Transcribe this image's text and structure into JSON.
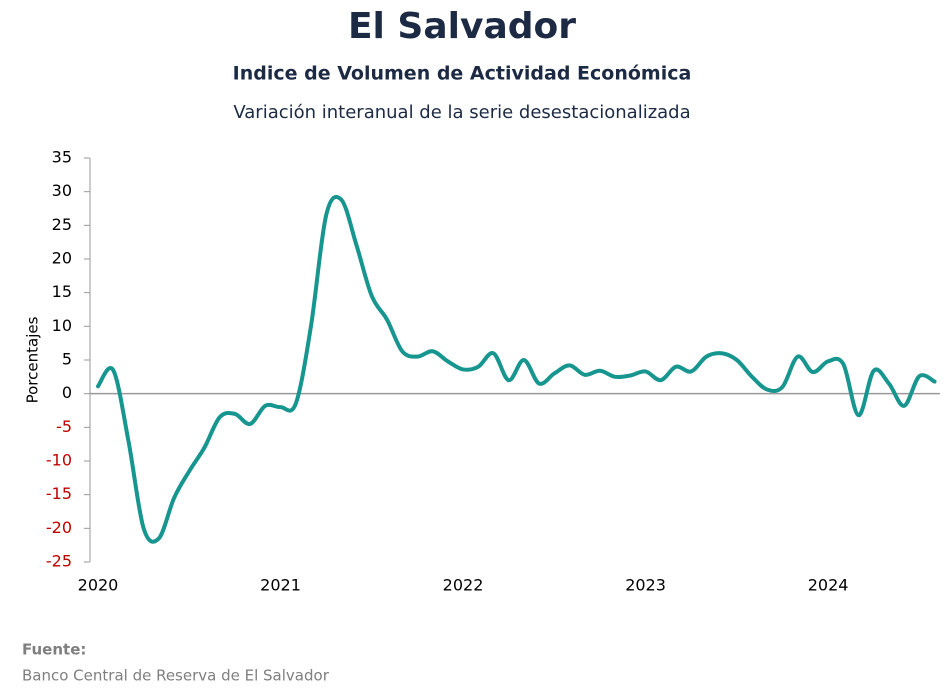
{
  "chart_data": {
    "type": "line",
    "title": "El Salvador",
    "subtitle": "Indice de Volumen de  Actividad Económica",
    "caption": "Variación interanual de la serie desestacionalizada",
    "y_label": "Porcentajes",
    "source_label": "Fuente:",
    "source": "Banco Central de Reserva de El Salvador",
    "categories": [
      "2020",
      null,
      null,
      null,
      null,
      null,
      null,
      null,
      null,
      null,
      null,
      null,
      "2021",
      null,
      null,
      null,
      null,
      null,
      null,
      null,
      null,
      null,
      null,
      null,
      "2022",
      null,
      null,
      null,
      null,
      null,
      null,
      null,
      null,
      null,
      null,
      null,
      "2023",
      null,
      null,
      null,
      null,
      null,
      null,
      null,
      null,
      null,
      null,
      null,
      "2024",
      null,
      null,
      null,
      null,
      null,
      null,
      null
    ],
    "series": [
      {
        "name": "Variación interanual",
        "color": "#17958f",
        "values": [
          1.1,
          3.5,
          -7,
          -20,
          -21.5,
          -15.5,
          -11.5,
          -8,
          -3.5,
          -3,
          -4.5,
          -1.8,
          -2,
          -1.5,
          10,
          26.5,
          28.8,
          22,
          14.5,
          11,
          6.3,
          5.5,
          6.3,
          4.8,
          3.6,
          4,
          6,
          2,
          5,
          1.5,
          3,
          4.2,
          2.8,
          3.4,
          2.5,
          2.7,
          3.3,
          2,
          4,
          3.3,
          5.5,
          6,
          5,
          2.5,
          0.6,
          1,
          5.5,
          3.2,
          4.8,
          4.4,
          -3.2,
          3.4,
          1.5,
          -1.8,
          2.6,
          1.8
        ]
      }
    ],
    "ylim": [
      -25,
      35
    ],
    "yticks": [
      -25,
      -20,
      -15,
      -10,
      -5,
      0,
      5,
      10,
      15,
      20,
      25,
      30,
      35
    ],
    "negative_tick_color": "#c00000",
    "zero_line": true,
    "grid": false
  }
}
